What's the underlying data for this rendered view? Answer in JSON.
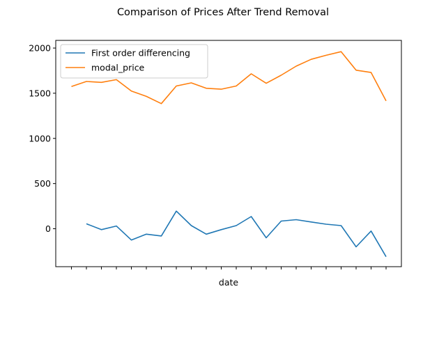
{
  "chart_data": {
    "type": "line",
    "title": "Comparison of Prices After Trend Removal",
    "xlabel": "date",
    "ylabel": "",
    "x_ticks_count": 22,
    "ylim": [
      -420,
      2085
    ],
    "yticks": [
      0,
      500,
      1000,
      1500,
      2000
    ],
    "legend_position": "top-left",
    "grid": false,
    "series": [
      {
        "name": "First order differencing",
        "color": "#1f77b4",
        "values": [
          null,
          55,
          -10,
          30,
          -125,
          -60,
          -80,
          195,
          35,
          -60,
          -10,
          35,
          135,
          -100,
          85,
          100,
          75,
          50,
          35,
          -200,
          -25,
          -310
        ]
      },
      {
        "name": "modal_price",
        "color": "#ff7f0e",
        "values": [
          1575,
          1630,
          1620,
          1650,
          1525,
          1465,
          1385,
          1580,
          1615,
          1555,
          1545,
          1580,
          1715,
          1610,
          1700,
          1800,
          1875,
          1920,
          1960,
          1755,
          1730,
          1415
        ]
      }
    ]
  }
}
